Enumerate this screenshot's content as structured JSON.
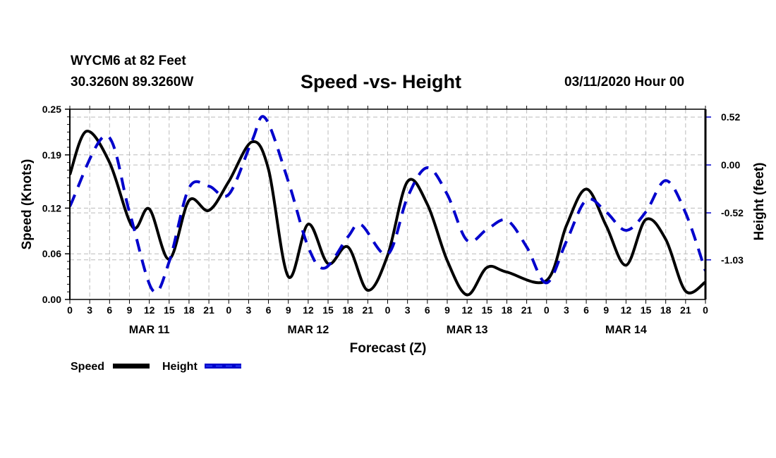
{
  "header": {
    "station": "WYCM6 at 82 Feet",
    "coords": "30.3260N 89.3260W",
    "title": "Speed -vs- Height",
    "datetime": "03/11/2020 Hour 00"
  },
  "chart_data": {
    "type": "line",
    "title": "Speed -vs- Height",
    "xlabel": "Forecast (Z)",
    "ylabel": "Speed (Knots)",
    "y2label": "Height (feet)",
    "xlim_hours": [
      0,
      96
    ],
    "x_tick_labels": [
      "0",
      "3",
      "6",
      "9",
      "12",
      "15",
      "18",
      "21",
      "0",
      "3",
      "6",
      "9",
      "12",
      "15",
      "18",
      "21",
      "0",
      "3",
      "6",
      "9",
      "12",
      "15",
      "18",
      "21",
      "0",
      "3",
      "6",
      "9",
      "12",
      "15",
      "18",
      "21",
      "0"
    ],
    "date_labels": [
      {
        "label": "MAR 11",
        "center_hour": 12
      },
      {
        "label": "MAR 12",
        "center_hour": 36
      },
      {
        "label": "MAR 13",
        "center_hour": 60
      },
      {
        "label": "MAR 14",
        "center_hour": 84
      }
    ],
    "ylim": [
      0,
      0.25
    ],
    "y_ticks": [
      0.0,
      0.06,
      0.12,
      0.19,
      0.25
    ],
    "y_tick_labels": [
      "0.00",
      "0.06",
      "0.12",
      "0.19",
      "0.25"
    ],
    "y2lim": [
      -1.46,
      0.605
    ],
    "y2_ticks": [
      0.52,
      0.0,
      -0.52,
      -1.03
    ],
    "y2_tick_labels": [
      "0.52",
      "0.00",
      "-0.52",
      "-1.03"
    ],
    "grid": true,
    "legend_position": "bottom-left",
    "series": [
      {
        "name": "Speed",
        "axis": "left",
        "color": "#000000",
        "style": "solid",
        "x": [
          0,
          2.5,
          6,
          9.5,
          12,
          15,
          18,
          21,
          24,
          27.5,
          30,
          33,
          36,
          39,
          42,
          45,
          48,
          51,
          54,
          57,
          60,
          63,
          66,
          72,
          75,
          78,
          81,
          84,
          87,
          90,
          93,
          96
        ],
        "values": [
          0.164,
          0.221,
          0.18,
          0.095,
          0.119,
          0.053,
          0.13,
          0.117,
          0.155,
          0.207,
          0.171,
          0.03,
          0.099,
          0.047,
          0.069,
          0.012,
          0.058,
          0.155,
          0.125,
          0.051,
          0.006,
          0.042,
          0.036,
          0.025,
          0.097,
          0.145,
          0.097,
          0.045,
          0.105,
          0.079,
          0.011,
          0.023
        ]
      },
      {
        "name": "Height",
        "axis": "right",
        "color": "#0000cc",
        "style": "dashed",
        "x": [
          0,
          5.5,
          9,
          12.5,
          15,
          18,
          21,
          24,
          27.5,
          29.5,
          33,
          36,
          38.5,
          42,
          44,
          48,
          51,
          54,
          57,
          60,
          63,
          66,
          69,
          72,
          75,
          78,
          81,
          84,
          87,
          90,
          93,
          96
        ],
        "values": [
          -0.45,
          0.32,
          -0.51,
          -1.36,
          -1.05,
          -0.25,
          -0.23,
          -0.32,
          0.26,
          0.51,
          -0.18,
          -0.89,
          -1.12,
          -0.78,
          -0.65,
          -0.97,
          -0.35,
          -0.03,
          -0.32,
          -0.82,
          -0.7,
          -0.6,
          -0.89,
          -1.28,
          -0.83,
          -0.38,
          -0.51,
          -0.71,
          -0.51,
          -0.17,
          -0.52,
          -1.15
        ]
      }
    ]
  },
  "legend": {
    "speed_label": "Speed",
    "height_label": "Height"
  }
}
